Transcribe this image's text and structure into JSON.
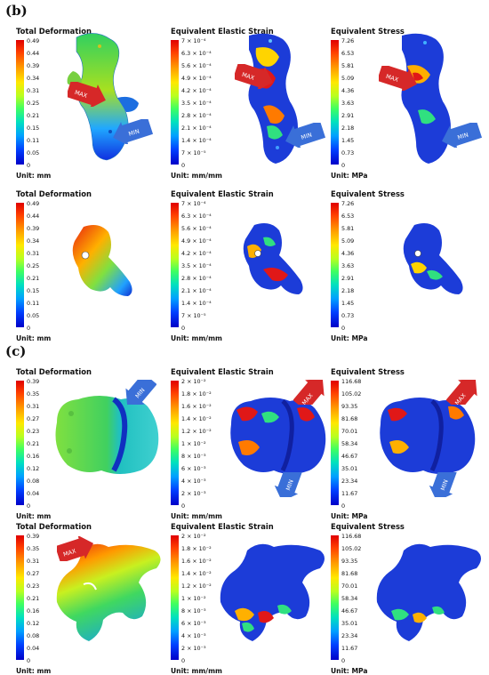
{
  "sections": [
    {
      "label": "(b)",
      "rows": [
        {
          "panels": [
            {
              "title": "Total Deformation",
              "unit": "Unit: mm",
              "ticks": [
                "0.49",
                "0.44",
                "0.39",
                "0.34",
                "0.31",
                "0.25",
                "0.21",
                "0.15",
                "0.11",
                "0.05",
                "0"
              ],
              "arrows": [
                {
                  "text": "MAX",
                  "color": "#d62828"
                },
                {
                  "text": "MIN",
                  "color": "#3a6fd8"
                }
              ]
            },
            {
              "title": "Equivalent Elastic Strain",
              "unit": "Unit: mm/mm",
              "ticks": [
                "7 × 10⁻⁴",
                "6.3 × 10⁻⁴",
                "5.6 × 10⁻⁴",
                "4.9 × 10⁻⁴",
                "4.2 × 10⁻⁴",
                "3.5 × 10⁻⁴",
                "2.8 × 10⁻⁴",
                "2.1 × 10⁻⁴",
                "1.4 × 10⁻⁴",
                "7 × 10⁻⁵",
                "0"
              ],
              "arrows": [
                {
                  "text": "MAX",
                  "color": "#d62828"
                },
                {
                  "text": "MIN",
                  "color": "#3a6fd8"
                }
              ]
            },
            {
              "title": "Equivalent Stress",
              "unit": "Unit: MPa",
              "ticks": [
                "7.26",
                "6.53",
                "5.81",
                "5.09",
                "4.36",
                "3.63",
                "2.91",
                "2.18",
                "1.45",
                "0.73",
                "0"
              ],
              "arrows": [
                {
                  "text": "MAX",
                  "color": "#d62828"
                },
                {
                  "text": "MIN",
                  "color": "#3a6fd8"
                }
              ]
            }
          ]
        },
        {
          "panels": [
            {
              "title": "Total Deformation",
              "unit": "Unit: mm",
              "ticks": [
                "0.49",
                "0.44",
                "0.39",
                "0.34",
                "0.31",
                "0.25",
                "0.21",
                "0.15",
                "0.11",
                "0.05",
                "0"
              ],
              "arrows": []
            },
            {
              "title": "Equivalent Elastic Strain",
              "unit": "Unit: mm/mm",
              "ticks": [
                "7 × 10⁻⁴",
                "6.3 × 10⁻⁴",
                "5.6 × 10⁻⁴",
                "4.9 × 10⁻⁴",
                "4.2 × 10⁻⁴",
                "3.5 × 10⁻⁴",
                "2.8 × 10⁻⁴",
                "2.1 × 10⁻⁴",
                "1.4 × 10⁻⁴",
                "7 × 10⁻⁵",
                "0"
              ],
              "arrows": []
            },
            {
              "title": "Equivalent Stress",
              "unit": "Unit: MPa",
              "ticks": [
                "7.26",
                "6.53",
                "5.81",
                "5.09",
                "4.36",
                "3.63",
                "2.91",
                "2.18",
                "1.45",
                "0.73",
                "0"
              ],
              "arrows": []
            }
          ]
        }
      ]
    },
    {
      "label": "(c)",
      "rows": [
        {
          "panels": [
            {
              "title": "Total Deformation",
              "unit": "Unit: mm",
              "ticks": [
                "0.39",
                "0.35",
                "0.31",
                "0.27",
                "0.23",
                "0.21",
                "0.16",
                "0.12",
                "0.08",
                "0.04",
                "0"
              ],
              "arrows": [
                {
                  "text": "MIN",
                  "color": "#3a6fd8"
                }
              ]
            },
            {
              "title": "Equivalent Elastic Strain",
              "unit": "Unit: mm/mm",
              "ticks": [
                "2 × 10⁻²",
                "1.8 × 10⁻²",
                "1.6 × 10⁻²",
                "1.4 × 10⁻²",
                "1.2 × 10⁻²",
                "1 × 10⁻²",
                "8 × 10⁻³",
                "6 × 10⁻³",
                "4 × 10⁻³",
                "2 × 10⁻³",
                "0"
              ],
              "arrows": [
                {
                  "text": "MAX",
                  "color": "#d62828"
                },
                {
                  "text": "MIN",
                  "color": "#3a6fd8"
                }
              ]
            },
            {
              "title": "Equivalent Stress",
              "unit": "Unit: MPa",
              "ticks": [
                "116.68",
                "105.02",
                "93.35",
                "81.68",
                "70.01",
                "58.34",
                "46.67",
                "35.01",
                "23.34",
                "11.67",
                "0"
              ],
              "arrows": [
                {
                  "text": "MAX",
                  "color": "#d62828"
                },
                {
                  "text": "MIN",
                  "color": "#3a6fd8"
                }
              ]
            }
          ]
        },
        {
          "panels": [
            {
              "title": "Total Deformation",
              "unit": "Unit: mm",
              "ticks": [
                "0.39",
                "0.35",
                "0.31",
                "0.27",
                "0.23",
                "0.21",
                "0.16",
                "0.12",
                "0.08",
                "0.04",
                "0"
              ],
              "arrows": [
                {
                  "text": "MAX",
                  "color": "#d62828"
                }
              ]
            },
            {
              "title": "Equivalent Elastic Strain",
              "unit": "Unit: mm/mm",
              "ticks": [
                "2 × 10⁻²",
                "1.8 × 10⁻²",
                "1.6 × 10⁻²",
                "1.4 × 10⁻²",
                "1.2 × 10⁻²",
                "1 × 10⁻²",
                "8 × 10⁻³",
                "6 × 10⁻³",
                "4 × 10⁻³",
                "2 × 10⁻³",
                "0"
              ],
              "arrows": []
            },
            {
              "title": "Equivalent Stress",
              "unit": "Unit: MPa",
              "ticks": [
                "116.68",
                "105.02",
                "93.35",
                "81.68",
                "70.01",
                "58.34",
                "46.67",
                "35.01",
                "23.34",
                "11.67",
                "0"
              ],
              "arrows": []
            }
          ]
        }
      ]
    }
  ]
}
